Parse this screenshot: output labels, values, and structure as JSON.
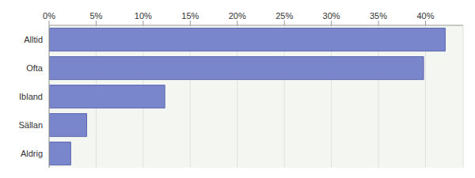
{
  "chart_data": {
    "type": "bar",
    "orientation": "horizontal",
    "categories": [
      "Alltid",
      "Ofta",
      "Ibland",
      "Sällan",
      "Aldrig"
    ],
    "values": [
      42.1,
      39.8,
      12.3,
      4.0,
      2.3
    ],
    "color": "#7986cc",
    "xlim": [
      0,
      44
    ],
    "xticks": [
      {
        "value": 0,
        "label": "0%"
      },
      {
        "value": 5,
        "label": "5%"
      },
      {
        "value": 10,
        "label": "10%"
      },
      {
        "value": 15,
        "label": "15%"
      },
      {
        "value": 20,
        "label": "20%"
      },
      {
        "value": 25,
        "label": "25%"
      },
      {
        "value": 30,
        "label": "30%"
      },
      {
        "value": 35,
        "label": "35%"
      },
      {
        "value": 40,
        "label": "40%"
      }
    ],
    "grid": true
  }
}
